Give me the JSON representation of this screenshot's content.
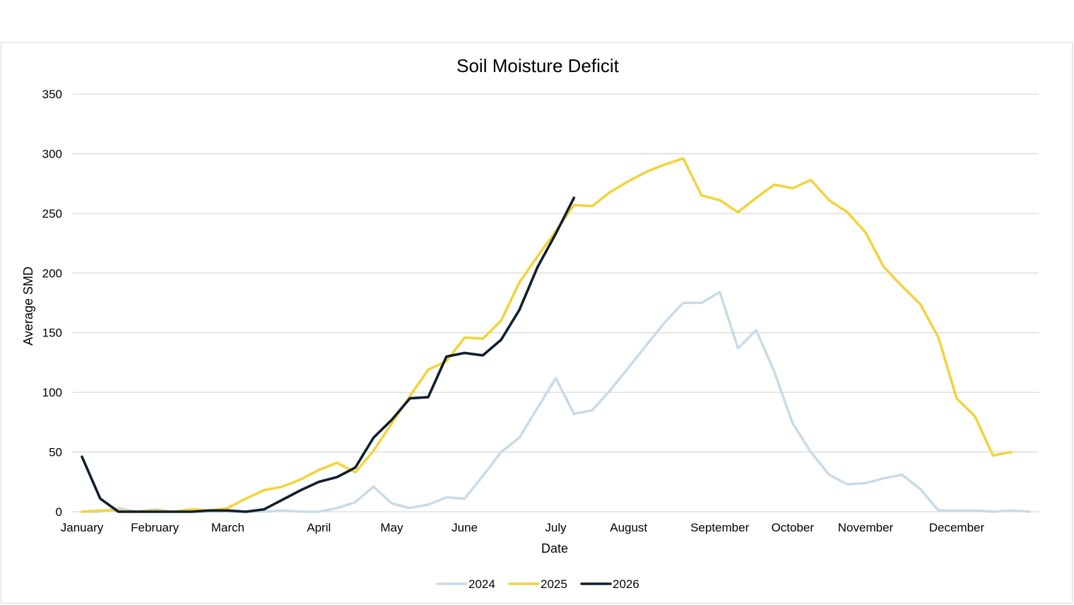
{
  "chart_data": {
    "type": "line",
    "title": "Soil Moisture Deficit",
    "xlabel": "Date",
    "ylabel": "Average SMD",
    "ylim": [
      0,
      350
    ],
    "yticks": [
      0,
      50,
      100,
      150,
      200,
      250,
      300,
      350
    ],
    "grid": true,
    "legend_position": "bottom",
    "x_unit": "week",
    "x_tick_labels": [
      {
        "label": "January",
        "x": 0
      },
      {
        "label": "February",
        "x": 4
      },
      {
        "label": "March",
        "x": 8
      },
      {
        "label": "April",
        "x": 13
      },
      {
        "label": "May",
        "x": 17
      },
      {
        "label": "June",
        "x": 21
      },
      {
        "label": "July",
        "x": 26
      },
      {
        "label": "August",
        "x": 30
      },
      {
        "label": "September",
        "x": 35
      },
      {
        "label": "October",
        "x": 39
      },
      {
        "label": "November",
        "x": 43
      },
      {
        "label": "December",
        "x": 48
      }
    ],
    "xlim": [
      0,
      52.5
    ],
    "series": [
      {
        "name": "2024",
        "color": "#c9dbe8",
        "values": [
          0,
          0,
          3,
          0,
          2,
          0,
          0,
          0,
          0,
          0,
          0,
          1,
          0,
          0,
          3,
          8,
          21,
          7,
          3,
          6,
          12,
          11,
          30,
          50,
          62,
          87,
          112,
          82,
          85,
          102,
          121,
          140,
          159,
          175,
          175,
          184,
          137,
          152,
          117,
          74,
          50,
          31,
          23,
          24,
          28,
          31,
          19,
          1,
          1,
          1,
          0,
          1,
          0
        ]
      },
      {
        "name": "2025",
        "color": "#f2d43d",
        "values": [
          0,
          1,
          1,
          0,
          1,
          0,
          2,
          1,
          3,
          11,
          18,
          21,
          27,
          35,
          41,
          33,
          51,
          74,
          97,
          119,
          126,
          146,
          145,
          160,
          192,
          214,
          235,
          257,
          256,
          268,
          277,
          285,
          291,
          296,
          265,
          261,
          251,
          263,
          274,
          271,
          278,
          261,
          251,
          234,
          205,
          189,
          174,
          146,
          95,
          80,
          47,
          50
        ]
      },
      {
        "name": "2026",
        "color": "#0e1e2e",
        "values": [
          46,
          11,
          0,
          0,
          0,
          0,
          0,
          1,
          1,
          0,
          2,
          10,
          18,
          25,
          29,
          37,
          62,
          77,
          95,
          96,
          130,
          133,
          131,
          144,
          169,
          205,
          233,
          263
        ]
      }
    ]
  }
}
